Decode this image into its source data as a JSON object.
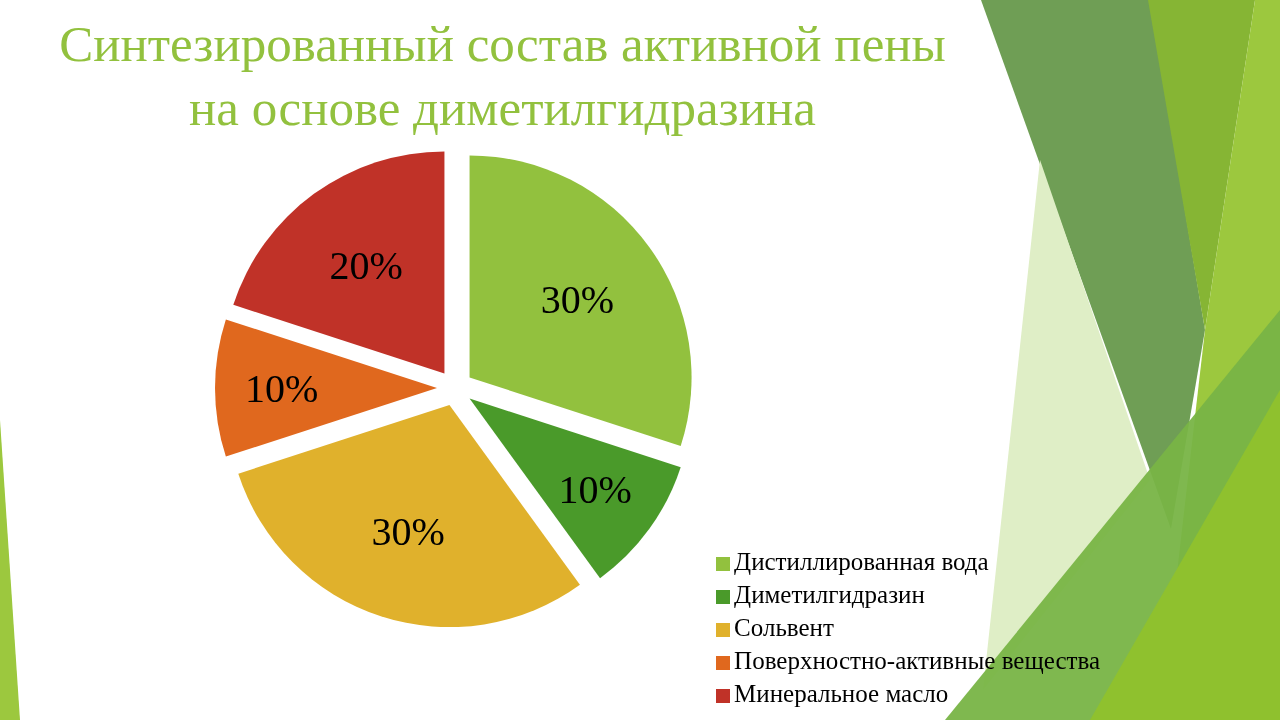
{
  "chart_data": {
    "type": "pie",
    "title": "Синтезированный состав активной пены на основе диметилгидразина",
    "categories": [
      "Дистиллированная вода",
      "Диметилгидразин",
      "Сольвент",
      "Поверхностно-активные вещества",
      "Минеральное масло"
    ],
    "values": [
      30,
      10,
      30,
      10,
      20
    ],
    "colors": [
      "#92c13e",
      "#4a9a2a",
      "#e0b12c",
      "#e0681e",
      "#c03228"
    ],
    "value_labels": [
      "30%",
      "10%",
      "30%",
      "10%",
      "20%"
    ],
    "legend": "bottom right"
  }
}
